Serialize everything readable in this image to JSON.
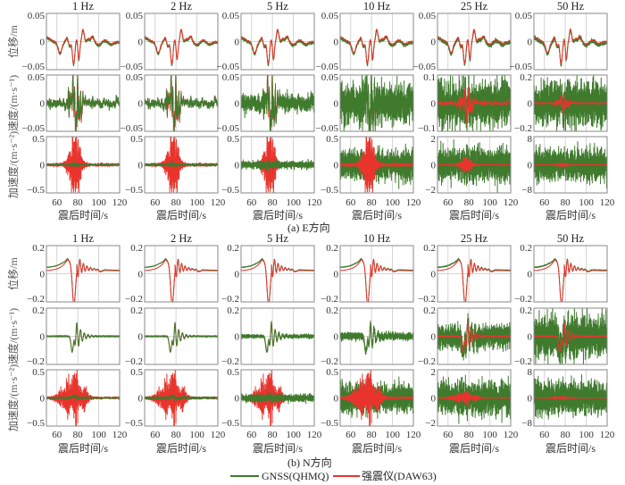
{
  "legend": [
    {
      "name": "GNSS(QHMQ)",
      "color": "#3f7a2d"
    },
    {
      "name": "强震仪(DAW63)",
      "color": "#e8342c"
    }
  ],
  "chart_data": {
    "type": "line",
    "columns": [
      "1 Hz",
      "2 Hz",
      "5 Hz",
      "10 Hz",
      "25 Hz",
      "50 Hz"
    ],
    "xlabel": "震后时间/s",
    "xlim": [
      50,
      120
    ],
    "xticks": [
      "60",
      "80",
      "100",
      "120"
    ],
    "grid": true,
    "legend_position": "bottom",
    "series": [
      "GNSS(QHMQ)",
      "强震仪(DAW63)"
    ],
    "subfigures": [
      {
        "caption": "(a) E方向",
        "rows": [
          {
            "ylabel": "位移/m",
            "panels": [
              {
                "ylim": [
                  -0.05,
                  0.05
                ],
                "yticks": [
                  "0.05",
                  "0",
                  "−0.05"
                ]
              },
              {
                "ylim": [
                  -0.05,
                  0.05
                ],
                "yticks": [
                  "0.05",
                  "0",
                  "−0.05"
                ]
              },
              {
                "ylim": [
                  -0.05,
                  0.05
                ],
                "yticks": [
                  "0.05",
                  "0",
                  "−0.05"
                ]
              },
              {
                "ylim": [
                  -0.05,
                  0.05
                ],
                "yticks": [
                  "0.05",
                  "0",
                  "−0.05"
                ]
              },
              {
                "ylim": [
                  -0.05,
                  0.05
                ],
                "yticks": [
                  "0.05",
                  "0",
                  "−0.05"
                ]
              },
              {
                "ylim": [
                  -0.05,
                  0.05
                ],
                "yticks": [
                  "0.05",
                  "0",
                  "−0.05"
                ]
              }
            ]
          },
          {
            "ylabel": "速度/(m·s⁻¹)",
            "panels": [
              {
                "ylim": [
                  -0.05,
                  0.05
                ],
                "yticks": [
                  "0.05",
                  "0",
                  "−0.05"
                ]
              },
              {
                "ylim": [
                  -0.05,
                  0.05
                ],
                "yticks": [
                  "0.05",
                  "0",
                  "−0.05"
                ]
              },
              {
                "ylim": [
                  -0.05,
                  0.05
                ],
                "yticks": [
                  "0.05",
                  "0",
                  "−0.05"
                ]
              },
              {
                "ylim": [
                  -0.05,
                  0.05
                ],
                "yticks": [
                  "0.05",
                  "0",
                  "−0.05"
                ]
              },
              {
                "ylim": [
                  -0.1,
                  0.1
                ],
                "yticks": [
                  "0.1",
                  "0",
                  "−0.1"
                ]
              },
              {
                "ylim": [
                  -0.2,
                  0.2
                ],
                "yticks": [
                  "0.2",
                  "0",
                  "−0.2"
                ]
              }
            ]
          },
          {
            "ylabel": "加速度/(m·s⁻²)",
            "panels": [
              {
                "ylim": [
                  -0.5,
                  0.5
                ],
                "yticks": [
                  "0.5",
                  "0",
                  "−0.5"
                ]
              },
              {
                "ylim": [
                  -0.5,
                  0.5
                ],
                "yticks": [
                  "0.5",
                  "0",
                  "−0.5"
                ]
              },
              {
                "ylim": [
                  -0.5,
                  0.5
                ],
                "yticks": [
                  "0.5",
                  "0",
                  "−0.5"
                ]
              },
              {
                "ylim": [
                  -0.5,
                  0.5
                ],
                "yticks": [
                  "0.5",
                  "0",
                  "−0.5"
                ]
              },
              {
                "ylim": [
                  -2,
                  2
                ],
                "yticks": [
                  "2",
                  "0",
                  "−2"
                ]
              },
              {
                "ylim": [
                  -8,
                  8
                ],
                "yticks": [
                  "8",
                  "0",
                  "−8"
                ]
              }
            ]
          }
        ]
      },
      {
        "caption": "(b) N方向",
        "rows": [
          {
            "ylabel": "位移/m",
            "panels": [
              {
                "ylim": [
                  -0.2,
                  0.2
                ],
                "yticks": [
                  "0.2",
                  "0",
                  "−0.2"
                ]
              },
              {
                "ylim": [
                  -0.2,
                  0.2
                ],
                "yticks": [
                  "0.2",
                  "0",
                  "−0.2"
                ]
              },
              {
                "ylim": [
                  -0.2,
                  0.2
                ],
                "yticks": [
                  "0.2",
                  "0",
                  "−0.2"
                ]
              },
              {
                "ylim": [
                  -0.2,
                  0.2
                ],
                "yticks": [
                  "0.2",
                  "0",
                  "−0.2"
                ]
              },
              {
                "ylim": [
                  -0.2,
                  0.2
                ],
                "yticks": [
                  "0.2",
                  "0",
                  "−0.2"
                ]
              },
              {
                "ylim": [
                  -0.2,
                  0.2
                ],
                "yticks": [
                  "0.2",
                  "0",
                  "−0.2"
                ]
              }
            ]
          },
          {
            "ylabel": "速度/(m·s⁻¹)",
            "panels": [
              {
                "ylim": [
                  -0.2,
                  0.2
                ],
                "yticks": [
                  "0.2",
                  "0",
                  "−0.2"
                ]
              },
              {
                "ylim": [
                  -0.2,
                  0.2
                ],
                "yticks": [
                  "0.2",
                  "0",
                  "−0.2"
                ]
              },
              {
                "ylim": [
                  -0.2,
                  0.2
                ],
                "yticks": [
                  "0.2",
                  "0",
                  "−0.2"
                ]
              },
              {
                "ylim": [
                  -0.2,
                  0.2
                ],
                "yticks": [
                  "0.2",
                  "0",
                  "−0.2"
                ]
              },
              {
                "ylim": [
                  -0.2,
                  0.2
                ],
                "yticks": [
                  "0.2",
                  "0",
                  "−0.2"
                ]
              },
              {
                "ylim": [
                  -0.2,
                  0.2
                ],
                "yticks": [
                  "0.2",
                  "0",
                  "−0.2"
                ]
              }
            ]
          },
          {
            "ylabel": "加速度/(m·s⁻²)",
            "panels": [
              {
                "ylim": [
                  -0.5,
                  0.5
                ],
                "yticks": [
                  "0.5",
                  "0",
                  "−0.5"
                ]
              },
              {
                "ylim": [
                  -0.5,
                  0.5
                ],
                "yticks": [
                  "0.5",
                  "0",
                  "−0.5"
                ]
              },
              {
                "ylim": [
                  -0.5,
                  0.5
                ],
                "yticks": [
                  "0.5",
                  "0",
                  "−0.5"
                ]
              },
              {
                "ylim": [
                  -0.5,
                  0.5
                ],
                "yticks": [
                  "0.5",
                  "0",
                  "−0.5"
                ]
              },
              {
                "ylim": [
                  -2,
                  2
                ],
                "yticks": [
                  "2",
                  "0",
                  "−2"
                ]
              },
              {
                "ylim": [
                  -8,
                  8
                ],
                "yticks": [
                  "8",
                  "0",
                  "−8"
                ]
              }
            ]
          }
        ]
      }
    ]
  }
}
